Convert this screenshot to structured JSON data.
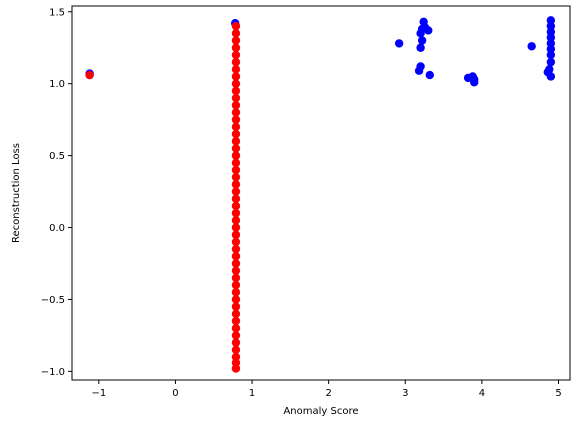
{
  "chart_data": {
    "type": "scatter",
    "title": "",
    "xlabel": "Anomaly Score",
    "ylabel": "Reconstruction Loss",
    "xlim": [
      -1.35,
      5.15
    ],
    "ylim": [
      -1.06,
      1.54
    ],
    "xticks": [
      -1,
      0,
      1,
      2,
      3,
      4,
      5
    ],
    "yticks": [
      -1.0,
      -0.5,
      0.0,
      0.5,
      1.0,
      1.5
    ],
    "xtick_labels": [
      "−1",
      "0",
      "1",
      "2",
      "3",
      "4",
      "5"
    ],
    "ytick_labels": [
      "−1.0",
      "−0.5",
      "0.0",
      "0.5",
      "1.0",
      "1.5"
    ],
    "grid": false,
    "series": [
      {
        "color": "#0000ff",
        "points": [
          [
            -1.12,
            1.07
          ],
          [
            -1.12,
            1.06
          ],
          [
            0.78,
            1.42
          ],
          [
            2.92,
            1.28
          ],
          [
            3.18,
            1.09
          ],
          [
            3.2,
            1.12
          ],
          [
            3.2,
            1.25
          ],
          [
            3.22,
            1.3
          ],
          [
            3.2,
            1.35
          ],
          [
            3.22,
            1.38
          ],
          [
            3.24,
            1.43
          ],
          [
            3.26,
            1.39
          ],
          [
            3.3,
            1.37
          ],
          [
            3.32,
            1.06
          ],
          [
            3.82,
            1.04
          ],
          [
            3.88,
            1.05
          ],
          [
            3.9,
            1.03
          ],
          [
            3.9,
            1.01
          ],
          [
            4.65,
            1.26
          ],
          [
            4.86,
            1.08
          ],
          [
            4.88,
            1.1
          ],
          [
            4.9,
            1.05
          ],
          [
            4.9,
            1.15
          ],
          [
            4.9,
            1.2
          ],
          [
            4.9,
            1.24
          ],
          [
            4.9,
            1.28
          ],
          [
            4.9,
            1.32
          ],
          [
            4.9,
            1.36
          ],
          [
            4.9,
            1.4
          ],
          [
            4.9,
            1.44
          ]
        ]
      },
      {
        "color": "#ff0000",
        "points": [
          [
            -1.12,
            1.06
          ],
          [
            0.79,
            -0.98
          ],
          [
            0.79,
            -0.94
          ],
          [
            0.79,
            -0.9
          ],
          [
            0.79,
            -0.85
          ],
          [
            0.79,
            -0.8
          ],
          [
            0.79,
            -0.75
          ],
          [
            0.79,
            -0.7
          ],
          [
            0.79,
            -0.65
          ],
          [
            0.79,
            -0.6
          ],
          [
            0.79,
            -0.55
          ],
          [
            0.79,
            -0.5
          ],
          [
            0.79,
            -0.45
          ],
          [
            0.79,
            -0.4
          ],
          [
            0.79,
            -0.35
          ],
          [
            0.79,
            -0.3
          ],
          [
            0.79,
            -0.25
          ],
          [
            0.79,
            -0.2
          ],
          [
            0.79,
            -0.15
          ],
          [
            0.79,
            -0.1
          ],
          [
            0.79,
            -0.05
          ],
          [
            0.79,
            0.0
          ],
          [
            0.79,
            0.05
          ],
          [
            0.79,
            0.1
          ],
          [
            0.79,
            0.15
          ],
          [
            0.79,
            0.2
          ],
          [
            0.79,
            0.25
          ],
          [
            0.79,
            0.3
          ],
          [
            0.79,
            0.35
          ],
          [
            0.79,
            0.4
          ],
          [
            0.79,
            0.45
          ],
          [
            0.79,
            0.5
          ],
          [
            0.79,
            0.55
          ],
          [
            0.79,
            0.6
          ],
          [
            0.79,
            0.65
          ],
          [
            0.79,
            0.7
          ],
          [
            0.79,
            0.75
          ],
          [
            0.79,
            0.8
          ],
          [
            0.79,
            0.85
          ],
          [
            0.79,
            0.9
          ],
          [
            0.79,
            0.95
          ],
          [
            0.79,
            1.0
          ],
          [
            0.79,
            1.05
          ],
          [
            0.79,
            1.1
          ],
          [
            0.79,
            1.15
          ],
          [
            0.79,
            1.2
          ],
          [
            0.79,
            1.25
          ],
          [
            0.79,
            1.3
          ],
          [
            0.79,
            1.35
          ],
          [
            0.79,
            1.4
          ]
        ]
      }
    ]
  }
}
